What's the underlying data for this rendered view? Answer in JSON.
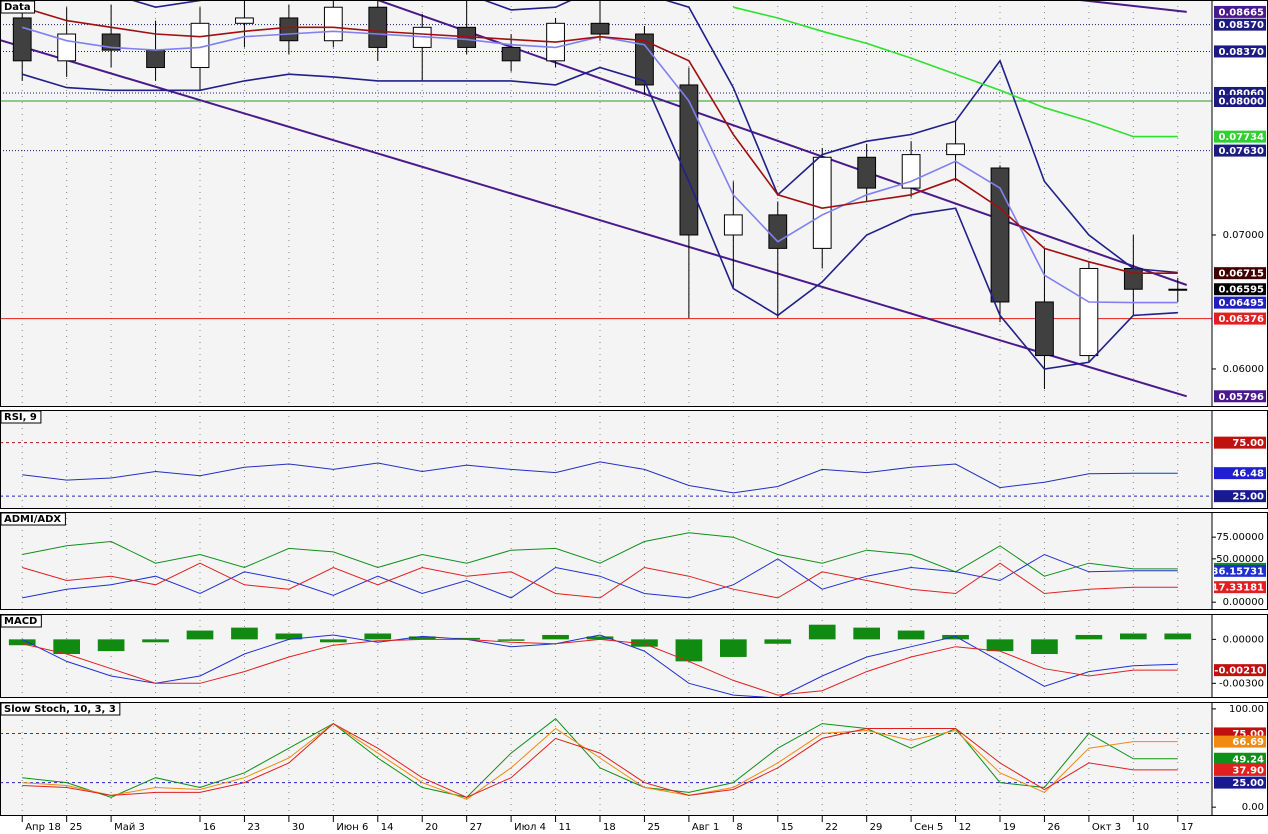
{
  "chart_data": [
    {
      "type": "candlestick",
      "title": "Data",
      "categories": [
        "Апр 18",
        "25",
        "Май 3",
        null,
        "16",
        "23",
        "30",
        "Июн 6",
        "14",
        "20",
        "27",
        "Июл 4",
        "11",
        "18",
        "25",
        "Авг 1",
        "8",
        "15",
        "22",
        "29",
        "Сен 5",
        "12",
        "19",
        "26",
        "Окт 3",
        "10",
        "17"
      ],
      "ohlc": [
        [
          0.0862,
          0.0875,
          0.0815,
          0.083
        ],
        [
          0.083,
          0.087,
          0.0818,
          0.085
        ],
        [
          0.085,
          0.0872,
          0.0825,
          0.0838
        ],
        [
          0.0838,
          0.086,
          0.0815,
          0.0825
        ],
        [
          0.0825,
          0.087,
          0.0808,
          0.0858
        ],
        [
          0.0858,
          0.0875,
          0.084,
          0.0862
        ],
        [
          0.0862,
          0.0872,
          0.0835,
          0.0845
        ],
        [
          0.0845,
          0.0878,
          0.084,
          0.087
        ],
        [
          0.087,
          0.0875,
          0.083,
          0.084
        ],
        [
          0.084,
          0.0865,
          0.0815,
          0.0855
        ],
        [
          0.0855,
          0.0875,
          0.0835,
          0.084
        ],
        [
          0.084,
          0.085,
          0.0822,
          0.083
        ],
        [
          0.083,
          0.0862,
          0.0825,
          0.0858
        ],
        [
          0.0858,
          0.0885,
          0.0845,
          0.085
        ],
        [
          0.085,
          0.0856,
          0.0805,
          0.0812
        ],
        [
          0.0812,
          0.0825,
          0.0638,
          0.07
        ],
        [
          0.07,
          0.074,
          0.066,
          0.0715
        ],
        [
          0.0715,
          0.0725,
          0.0638,
          0.069
        ],
        [
          0.069,
          0.0765,
          0.0675,
          0.0758
        ],
        [
          0.0758,
          0.0768,
          0.0725,
          0.0735
        ],
        [
          0.0735,
          0.077,
          0.0728,
          0.076
        ],
        [
          0.076,
          0.0785,
          0.074,
          0.0768
        ],
        [
          0.075,
          0.0752,
          0.0635,
          0.065
        ],
        [
          0.065,
          0.069,
          0.0585,
          0.061
        ],
        [
          0.061,
          0.068,
          0.0605,
          0.0675
        ],
        [
          0.0675,
          0.07,
          0.064,
          0.06595
        ],
        [
          0.06595,
          0.0668,
          0.065,
          0.06595
        ]
      ],
      "up_color": "#ffffff",
      "down_color": "#404040",
      "series": [
        {
          "color": "#8080f0",
          "values": [
            0.0855,
            0.0845,
            0.084,
            0.0838,
            0.084,
            0.0848,
            0.085,
            0.0852,
            0.085,
            0.0848,
            0.0846,
            0.0842,
            0.084,
            0.0848,
            0.0842,
            0.08,
            0.073,
            0.0695,
            0.0715,
            0.073,
            0.074,
            0.0755,
            0.0735,
            0.067,
            0.065,
            0.06495,
            0.06495
          ]
        },
        {
          "color": "#20208a",
          "values": [
            0.089,
            0.0888,
            0.088,
            0.087,
            0.0875,
            0.088,
            0.0885,
            0.0888,
            0.088,
            0.0878,
            0.088,
            0.0868,
            0.087,
            0.0885,
            0.088,
            0.087,
            0.081,
            0.073,
            0.076,
            0.077,
            0.0775,
            0.0785,
            0.083,
            0.074,
            0.07,
            0.0675,
            0.0672
          ]
        },
        {
          "color": "#20208a",
          "values": [
            0.082,
            0.081,
            0.0808,
            0.0808,
            0.0808,
            0.0815,
            0.082,
            0.0818,
            0.0815,
            0.0815,
            0.0815,
            0.0815,
            0.0812,
            0.0825,
            0.0815,
            0.074,
            0.066,
            0.064,
            0.0665,
            0.07,
            0.0715,
            0.072,
            0.064,
            0.06,
            0.0605,
            0.064,
            0.0642
          ]
        },
        {
          "color": "#a01010",
          "values": [
            0.087,
            0.086,
            0.0855,
            0.085,
            0.0848,
            0.0852,
            0.0855,
            0.0855,
            0.0852,
            0.085,
            0.0848,
            0.0846,
            0.0844,
            0.0848,
            0.0845,
            0.083,
            0.0775,
            0.073,
            0.072,
            0.0725,
            0.073,
            0.0742,
            0.072,
            0.069,
            0.068,
            0.06715,
            0.06715
          ]
        },
        {
          "color": "#30e030",
          "values": [
            null,
            null,
            null,
            null,
            null,
            null,
            null,
            null,
            null,
            null,
            null,
            null,
            null,
            null,
            null,
            null,
            0.087,
            0.0862,
            0.0852,
            0.0843,
            0.0832,
            0.082,
            0.0808,
            0.0795,
            0.0785,
            0.07734,
            0.07734
          ]
        }
      ],
      "trendlines": [
        {
          "color": "#4a1a8c",
          "x": [
            -0.5,
            26.2
          ],
          "values": [
            0.08455,
            0.05796
          ]
        },
        {
          "color": "#4a1a8c",
          "x": [
            8.0,
            26.2
          ],
          "values": [
            0.08754,
            0.06627
          ]
        },
        {
          "color": "#4a1a8c",
          "x": [
            23.8,
            26.2
          ],
          "values": [
            0.08754,
            0.08665
          ]
        }
      ],
      "ylim": [
        0.05716,
        0.08754
      ],
      "yticks": [
        {
          "value": 0.06,
          "label": "0.06000"
        },
        {
          "value": 0.07,
          "label": "0.07000"
        }
      ],
      "markers": [
        {
          "value": 0.08665,
          "label": "0.08665",
          "color": "#4a1a8c"
        },
        {
          "value": 0.0857,
          "label": "0.08570",
          "color": "#1a1a80",
          "line": "dotted"
        },
        {
          "value": 0.0837,
          "label": "0.08370",
          "color": "#1a1a80",
          "line": "dotted"
        },
        {
          "value": 0.0806,
          "label": "0.08060",
          "color": "#1a1a80",
          "line": "dotted"
        },
        {
          "value": 0.08,
          "label": "0.08000",
          "color": "#1a1a80",
          "line": "solid",
          "line_color": "#20a020"
        },
        {
          "value": 0.07734,
          "label": "0.07734",
          "color": "#30d030"
        },
        {
          "value": 0.0763,
          "label": "0.07630",
          "color": "#1a1a80",
          "line": "dotted"
        },
        {
          "value": 0.06715,
          "label": "0.06715",
          "color": "#400000"
        },
        {
          "value": 0.06595,
          "label": "0.06595",
          "color": "#000000"
        },
        {
          "value": 0.06495,
          "label": "0.06495",
          "color": "#2020c0"
        },
        {
          "value": 0.06376,
          "label": "0.06376",
          "color": "#e02020",
          "line": "solid",
          "line_color": "#e02020"
        },
        {
          "value": 0.05796,
          "label": "0.05796",
          "color": "#4a1a8c"
        }
      ]
    },
    {
      "type": "line",
      "title": "RSI, 9",
      "ylim": [
        13,
        105.5
      ],
      "series": [
        {
          "color": "#2030c0",
          "values": [
            45,
            40,
            42,
            48,
            44,
            52,
            55,
            50,
            56,
            48,
            54,
            50,
            47,
            57,
            50,
            35,
            28,
            34,
            50,
            47,
            52,
            55,
            33,
            38,
            46,
            46.48,
            46.48
          ]
        }
      ],
      "markers": [
        {
          "value": 75,
          "label": "75.00",
          "color": "#c01010",
          "line": "dashed",
          "line_color": "#c01010"
        },
        {
          "value": 46.48,
          "label": "46.48",
          "color": "#2020d0"
        },
        {
          "value": 25,
          "label": "25.00",
          "color": "#1a1a90",
          "line": "dashed",
          "line_color": "#2020d0"
        }
      ]
    },
    {
      "type": "line",
      "title": "ADMI/ADX",
      "ylim": [
        -9,
        104
      ],
      "yticks": [
        {
          "value": 75,
          "label": "75.00000"
        },
        {
          "value": 50,
          "label": "50.00000"
        },
        {
          "value": 0,
          "label": "0.00000"
        }
      ],
      "series": [
        {
          "color": "#10901a",
          "values": [
            55,
            65,
            70,
            45,
            55,
            40,
            62,
            58,
            40,
            55,
            45,
            60,
            62,
            45,
            70,
            80,
            75,
            55,
            45,
            60,
            55,
            35,
            65,
            30,
            45,
            38.4448,
            38.4448
          ]
        },
        {
          "color": "#2030d0",
          "values": [
            5,
            15,
            20,
            30,
            10,
            35,
            25,
            8,
            30,
            10,
            25,
            5,
            40,
            30,
            10,
            5,
            20,
            50,
            15,
            30,
            40,
            35,
            25,
            55,
            35,
            36.15731,
            36.15731
          ]
        },
        {
          "color": "#e02020",
          "values": [
            40,
            25,
            30,
            20,
            45,
            20,
            15,
            40,
            20,
            40,
            30,
            35,
            10,
            5,
            40,
            30,
            15,
            5,
            35,
            25,
            15,
            10,
            45,
            10,
            15,
            17.33181,
            17.33181
          ]
        }
      ],
      "markers": [
        {
          "value": 38.4448,
          "label": "38.44480",
          "color": "#10901a"
        },
        {
          "value": 36.15731,
          "label": "36.15731",
          "color": "#2030d0"
        },
        {
          "value": 17.33181,
          "label": "17.33181",
          "color": "#e02020"
        }
      ]
    },
    {
      "type": "line",
      "title": "MACD",
      "ylim": [
        -0.004,
        0.00173
      ],
      "yticks": [
        {
          "value": 0,
          "label": "0.00000"
        },
        {
          "value": -0.003,
          "label": "-0.00300"
        }
      ],
      "series": [
        {
          "color": "#108a10",
          "style": "histogram",
          "values": [
            -0.0004,
            -0.001,
            -0.0008,
            -0.0002,
            0.0006,
            0.0008,
            0.0004,
            -0.0002,
            0.0004,
            0.0002,
            0.0001,
            -0.0001,
            0.0003,
            0.0002,
            -0.0005,
            -0.0015,
            -0.0012,
            -0.0003,
            0.001,
            0.0008,
            0.0006,
            0.0003,
            -0.0008,
            -0.001,
            0.0003,
            0.0004,
            0.0004
          ]
        },
        {
          "color": "#2030d0",
          "values": [
            0,
            -0.0015,
            -0.0025,
            -0.003,
            -0.0025,
            -0.001,
            0,
            0.0003,
            -0.0002,
            0.0002,
            0,
            -0.0005,
            -0.0003,
            0.0003,
            -0.0008,
            -0.003,
            -0.0038,
            -0.004,
            -0.0025,
            -0.0012,
            -0.0005,
            0.0002,
            -0.0015,
            -0.0032,
            -0.0022,
            -0.0018,
            -0.0017
          ]
        },
        {
          "color": "#e02020",
          "values": [
            -0.0003,
            -0.001,
            -0.002,
            -0.003,
            -0.003,
            -0.0022,
            -0.0012,
            -0.0004,
            -0.0001,
            0,
            0,
            -0.0002,
            -0.0003,
            0,
            -0.0003,
            -0.0015,
            -0.0028,
            -0.0038,
            -0.0035,
            -0.0022,
            -0.0012,
            -0.0005,
            -0.0008,
            -0.002,
            -0.0025,
            -0.0021,
            -0.0021
          ]
        }
      ],
      "markers": [
        {
          "value": -0.0021,
          "label": "-0.00210",
          "color": "#c01010"
        }
      ]
    },
    {
      "type": "line",
      "title": "Slow Stoch, 10, 3, 3",
      "ylim": [
        -9,
        107
      ],
      "yticks": [
        {
          "value": 100,
          "label": "100.00"
        },
        {
          "value": 0,
          "label": "0.00"
        }
      ],
      "series": [
        {
          "color": "#10901a",
          "values": [
            30,
            25,
            10,
            30,
            20,
            35,
            60,
            85,
            50,
            20,
            10,
            55,
            90,
            40,
            20,
            15,
            25,
            60,
            85,
            80,
            60,
            80,
            25,
            20,
            75,
            49.24,
            49.24
          ]
        },
        {
          "color": "#f08a10",
          "values": [
            25,
            22,
            12,
            20,
            18,
            30,
            50,
            85,
            55,
            25,
            8,
            40,
            80,
            50,
            20,
            12,
            20,
            45,
            75,
            78,
            68,
            78,
            35,
            15,
            60,
            66.69,
            66.69
          ]
        },
        {
          "color": "#e02020",
          "values": [
            22,
            20,
            12,
            15,
            15,
            25,
            45,
            85,
            60,
            30,
            10,
            30,
            70,
            55,
            25,
            12,
            18,
            40,
            70,
            80,
            80,
            80,
            45,
            18,
            45,
            37.9,
            37.9
          ]
        }
      ],
      "markers": [
        {
          "value": 75,
          "label": "75.00",
          "color": "#c01010",
          "line": "dashed",
          "line_color": "#c01010"
        },
        {
          "value": 66.69,
          "label": "66.69",
          "color": "#f08a10"
        },
        {
          "value": 49.24,
          "label": "49.24",
          "color": "#10901a"
        },
        {
          "value": 37.9,
          "label": "37.90",
          "color": "#e02020"
        },
        {
          "value": 25,
          "label": "25.00",
          "color": "#1a1a90",
          "line": "dashed",
          "line_color": "#2020d0"
        }
      ]
    }
  ]
}
